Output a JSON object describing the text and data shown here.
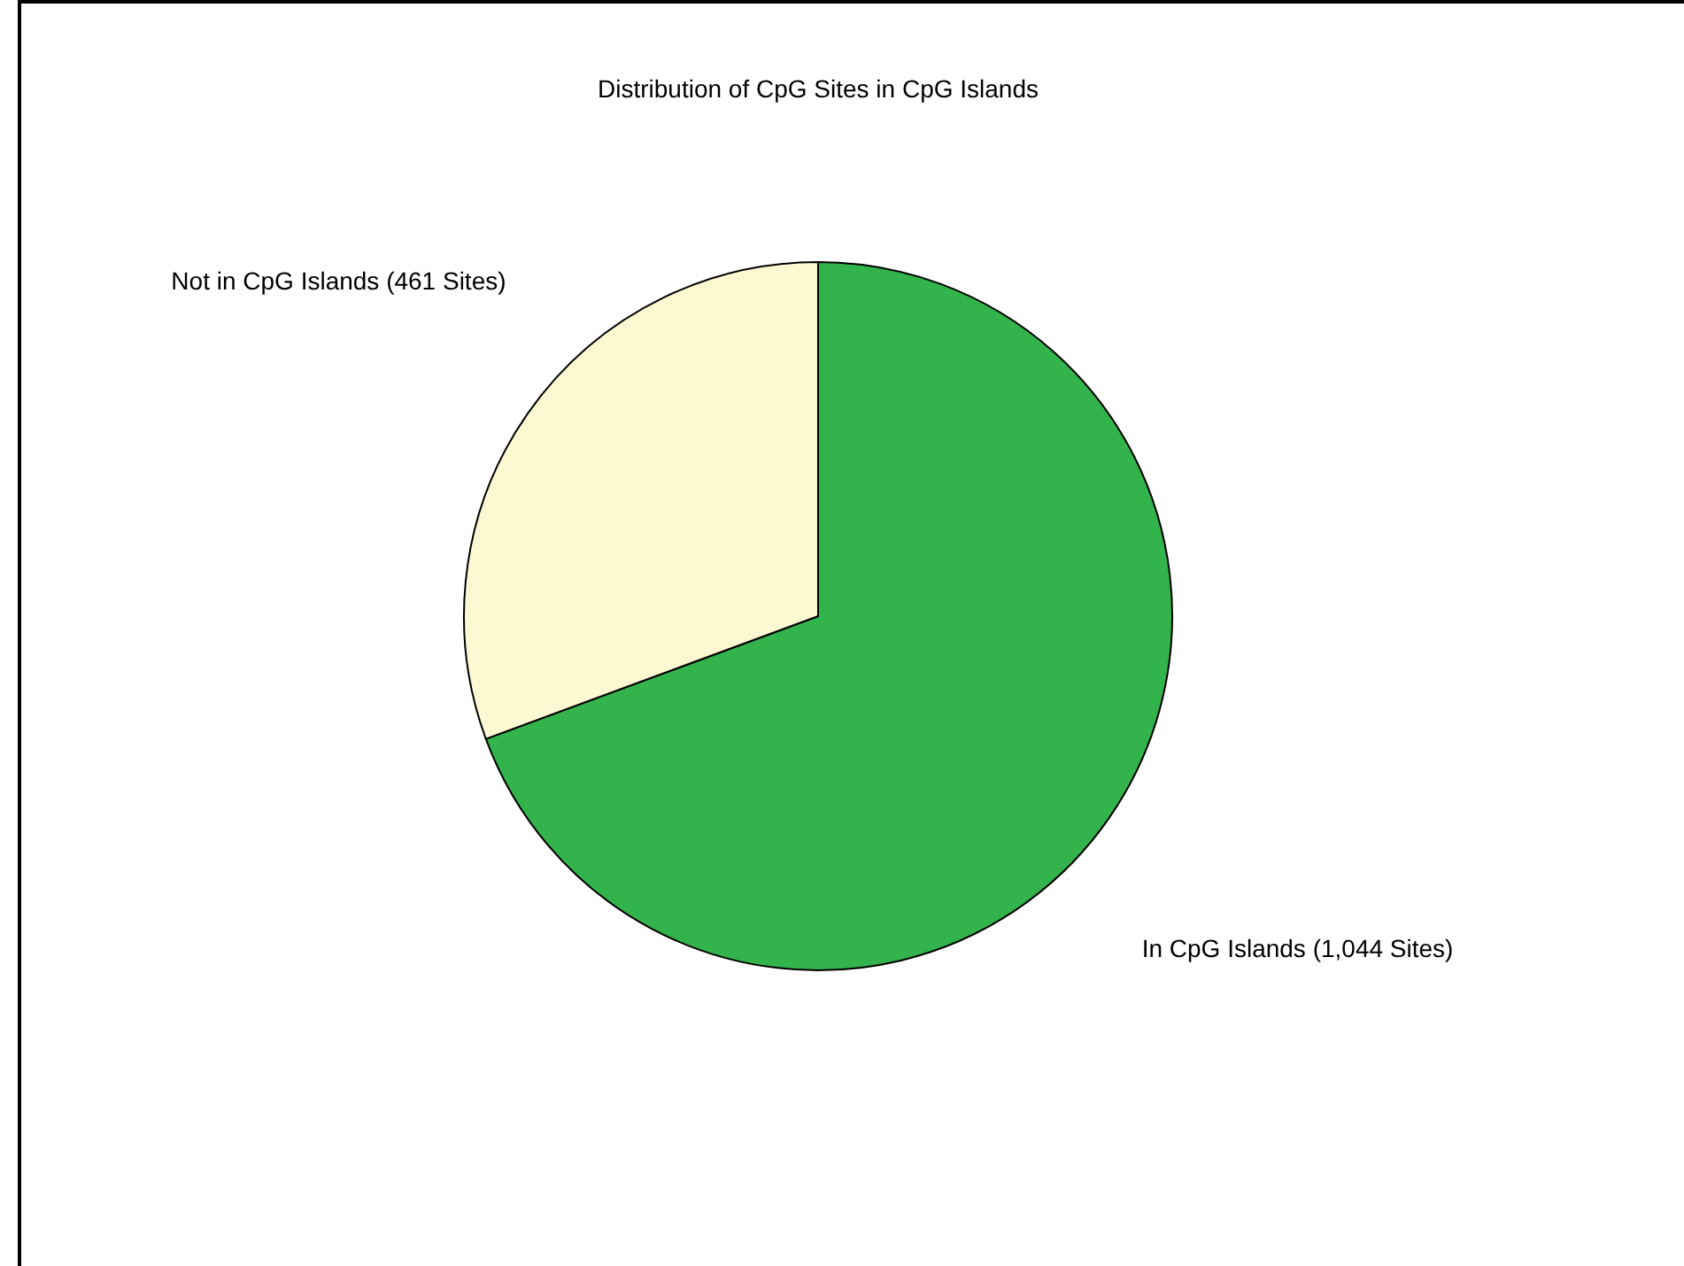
{
  "chart_data": {
    "type": "pie",
    "title": "Distribution of CpG Sites in CpG Islands",
    "categories": [
      "In CpG Islands (1,044 Sites)",
      "Not in CpG Islands (461 Sites)"
    ],
    "values": [
      1044,
      461
    ],
    "colors": [
      "#33b34b",
      "#fcf8d2"
    ],
    "legend": false
  }
}
